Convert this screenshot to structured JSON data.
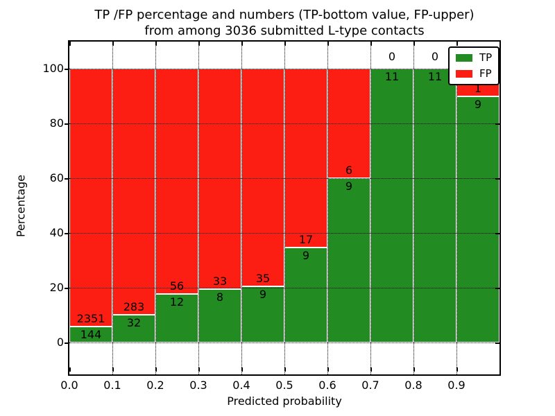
{
  "figure": {
    "title_line1": "TP /FP percentage and numbers (TP-bottom value, FP-upper)",
    "title_line2": "from among 3036 submitted L-type contacts"
  },
  "chart_data": {
    "type": "bar",
    "subtype": "stacked-percentage-histogram",
    "title": "TP /FP percentage and numbers (TP-bottom value, FP-upper) from among 3036 submitted L-type contacts",
    "xlabel": "Predicted probability",
    "ylabel": "Percentage",
    "total_submitted_contacts": 3036,
    "bin_starts": [
      0.0,
      0.1,
      0.2,
      0.3,
      0.4,
      0.5,
      0.6,
      0.7,
      0.8,
      0.9
    ],
    "bin_width": 0.1,
    "series": [
      {
        "name": "TP",
        "color": "#228b22",
        "counts": [
          144,
          32,
          12,
          8,
          9,
          9,
          9,
          11,
          11,
          9
        ]
      },
      {
        "name": "FP",
        "color": "#fc1d13",
        "counts": [
          2351,
          283,
          56,
          33,
          35,
          17,
          6,
          0,
          0,
          1
        ]
      }
    ],
    "tp_percent_of_bin": [
      5.8,
      10.2,
      17.6,
      19.5,
      20.5,
      34.6,
      60.0,
      100.0,
      100.0,
      90.0
    ],
    "x_tick_labels": [
      "0.0",
      "0.1",
      "0.2",
      "0.3",
      "0.4",
      "0.5",
      "0.6",
      "0.7",
      "0.8",
      "0.9"
    ],
    "y_ticks": [
      0,
      20,
      40,
      60,
      80,
      100
    ],
    "xlim": [
      0.0,
      1.0
    ],
    "ylim": [
      -12,
      110
    ],
    "grid": "dotted, both axes, drawn over bars",
    "bar_edge_color": "#ffffff",
    "legend": {
      "position": "upper right",
      "entries": [
        {
          "label": "TP",
          "color": "#228b22"
        },
        {
          "label": "FP",
          "color": "#fc1d13"
        }
      ]
    }
  }
}
